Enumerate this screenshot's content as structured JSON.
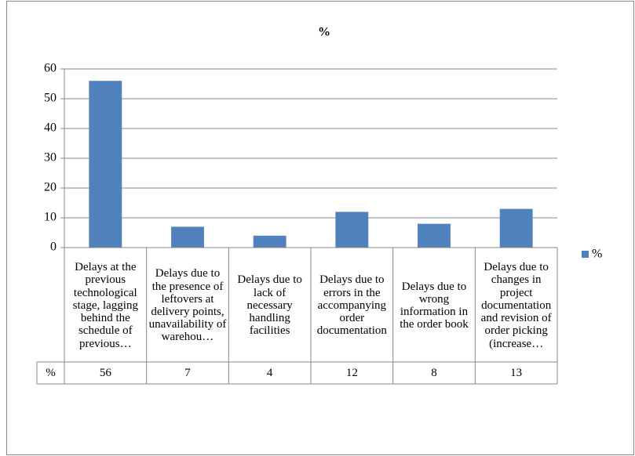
{
  "chart_data": {
    "type": "bar",
    "title": "%",
    "categories": [
      "Delays at the previous technological stage, lagging behind the schedule of previous…",
      "Delays due to the presence of leftovers at delivery points, unavailability of warehou…",
      "Delays due to lack of necessary handling facilities",
      "Delays due to errors in the accompanying order documentation",
      "Delays due to wrong information in the order book",
      "Delays due to changes in project documentation and revision of order picking (increase…"
    ],
    "series": [
      {
        "name": "%",
        "color": "#4f81bd",
        "values": [
          56,
          7,
          4,
          12,
          8,
          13
        ]
      }
    ],
    "ylim": [
      0,
      60
    ],
    "yticks": [
      0,
      10,
      20,
      30,
      40,
      50,
      60
    ],
    "grid": true,
    "legend": "right",
    "data_table": true
  }
}
